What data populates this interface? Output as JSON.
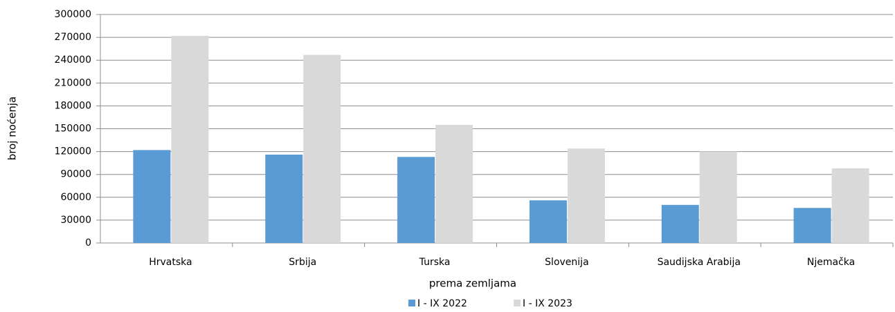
{
  "chart_data": {
    "type": "bar",
    "x_label": "prema zemljama",
    "y_label": "broj noćenja",
    "categories": [
      "Hrvatska",
      "Srbija",
      "Turska",
      "Slovenija",
      "Saudijska Arabija",
      "Njemačka"
    ],
    "series": [
      {
        "name": "I - IX 2022",
        "color": "#5b9bd5",
        "values": [
          122000,
          116000,
          113000,
          56000,
          50000,
          46000
        ]
      },
      {
        "name": "I - IX 2023",
        "color": "#d9d9d9",
        "values": [
          272000,
          247000,
          155000,
          124000,
          120000,
          98000
        ]
      }
    ],
    "ylim": [
      0,
      300000
    ],
    "yticks": [
      0,
      30000,
      60000,
      90000,
      120000,
      150000,
      180000,
      210000,
      240000,
      270000,
      300000
    ],
    "grid": true,
    "legend": "bottom"
  }
}
